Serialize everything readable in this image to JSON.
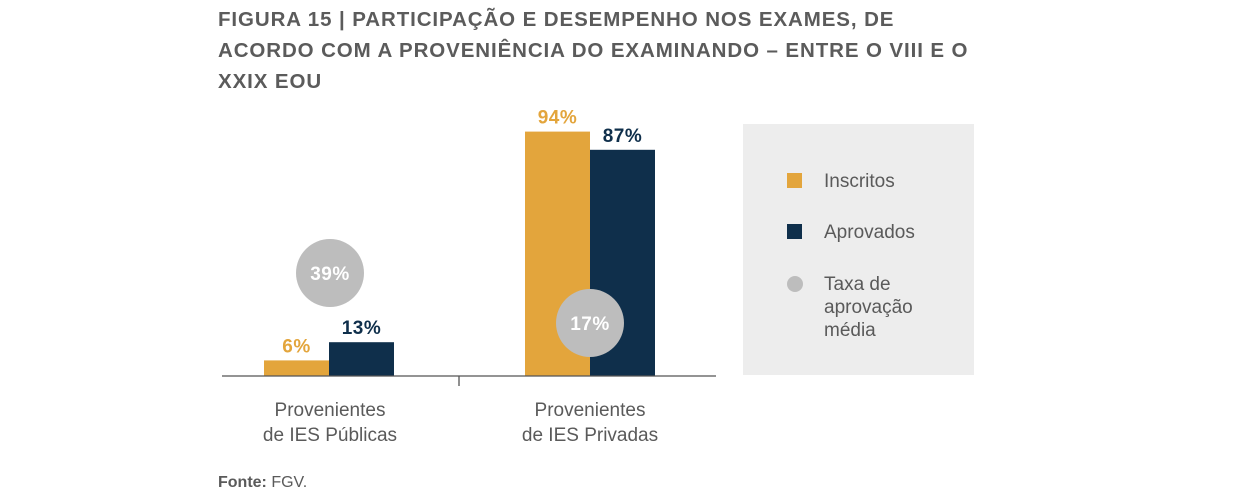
{
  "title": "FIGURA 15 | PARTICIPAÇÃO E DESEMPENHO NOS EXAMES, DE ACORDO COM A PROVENIÊNCIA DO EXAMINANDO – ENTRE O VIII E O XXIX EOU",
  "source": {
    "label": "Fonte:",
    "value": "FGV."
  },
  "colors": {
    "inscritos": "#e3a53c",
    "aprovados": "#0f2f4b",
    "taxa": "#bdbdbd",
    "axis": "#555555"
  },
  "chart_data": {
    "type": "bar",
    "categories": [
      "Provenientes\nde IES Públicas",
      "Provenientes\nde IES Privadas"
    ],
    "series": [
      {
        "name": "Inscritos",
        "values": [
          6,
          94
        ],
        "labels": [
          "6%",
          "94%"
        ]
      },
      {
        "name": "Aprovados",
        "values": [
          13,
          87
        ],
        "labels": [
          "13%",
          "87%"
        ]
      }
    ],
    "rate": {
      "name": "Taxa de aprovação média",
      "values": [
        39,
        17
      ],
      "labels": [
        "39%",
        "17%"
      ]
    },
    "ylim": [
      0,
      100
    ],
    "grid": false,
    "legend_position": "right"
  },
  "legend": [
    {
      "label": "Inscritos",
      "kind": "square",
      "color": "#e3a53c"
    },
    {
      "label": "Aprovados",
      "kind": "square",
      "color": "#0f2f4b"
    },
    {
      "label": "Taxa de aprovação média",
      "kind": "circle",
      "color": "#bdbdbd"
    }
  ]
}
